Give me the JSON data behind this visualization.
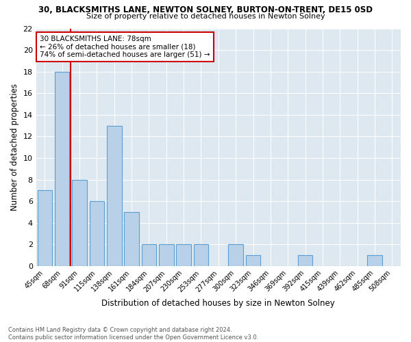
{
  "title1": "30, BLACKSMITHS LANE, NEWTON SOLNEY, BURTON-ON-TRENT, DE15 0SD",
  "title2": "Size of property relative to detached houses in Newton Solney",
  "xlabel": "Distribution of detached houses by size in Newton Solney",
  "ylabel": "Number of detached properties",
  "categories": [
    "45sqm",
    "68sqm",
    "91sqm",
    "115sqm",
    "138sqm",
    "161sqm",
    "184sqm",
    "207sqm",
    "230sqm",
    "253sqm",
    "277sqm",
    "300sqm",
    "323sqm",
    "346sqm",
    "369sqm",
    "392sqm",
    "415sqm",
    "439sqm",
    "462sqm",
    "485sqm",
    "508sqm"
  ],
  "values": [
    7,
    18,
    8,
    6,
    13,
    5,
    2,
    2,
    2,
    2,
    0,
    2,
    1,
    0,
    0,
    1,
    0,
    0,
    0,
    1,
    0
  ],
  "bar_color": "#b8d0e8",
  "bar_edge_color": "#5a9fd4",
  "annotation_text_line1": "30 BLACKSMITHS LANE: 78sqm",
  "annotation_text_line2": "← 26% of detached houses are smaller (18)",
  "annotation_text_line3": "74% of semi-detached houses are larger (51) →",
  "red_line_color": "#cc0000",
  "annotation_box_color": "#ffffff",
  "annotation_box_edge": "#cc0000",
  "ylim": [
    0,
    22
  ],
  "yticks": [
    0,
    2,
    4,
    6,
    8,
    10,
    12,
    14,
    16,
    18,
    20,
    22
  ],
  "bg_color": "#dde8f0",
  "footnote": "Contains HM Land Registry data © Crown copyright and database right 2024.\nContains public sector information licensed under the Open Government Licence v3.0."
}
